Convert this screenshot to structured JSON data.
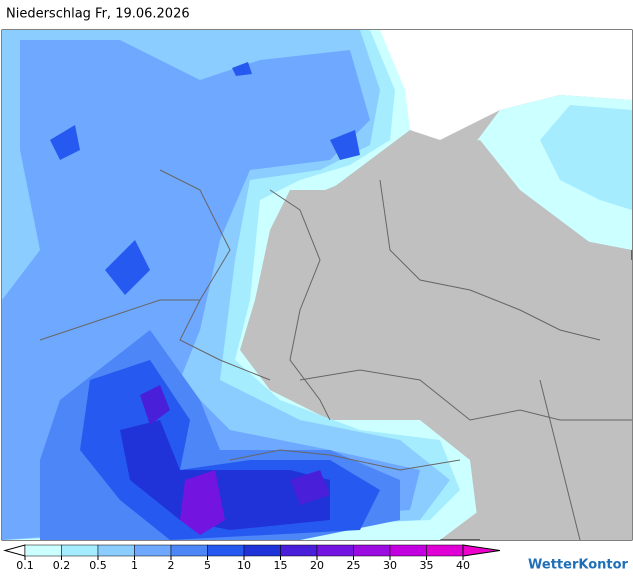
{
  "header": {
    "title": "Niederschlag Fr, 19.06.2026"
  },
  "legend": {
    "labels": [
      "0.1",
      "0.2",
      "0.5",
      "1",
      "2",
      "5",
      "10",
      "15",
      "20",
      "25",
      "30",
      "35",
      "40"
    ],
    "colors": [
      "#ffffff",
      "#ccffff",
      "#a6ecff",
      "#8ccdff",
      "#6fa8ff",
      "#4d86f7",
      "#2659f0",
      "#1f33d9",
      "#4a1fd9",
      "#7314e0",
      "#9b0ce0",
      "#c200e0",
      "#e000d6",
      "#ee00cc"
    ]
  },
  "brand": "WetterKontor"
}
